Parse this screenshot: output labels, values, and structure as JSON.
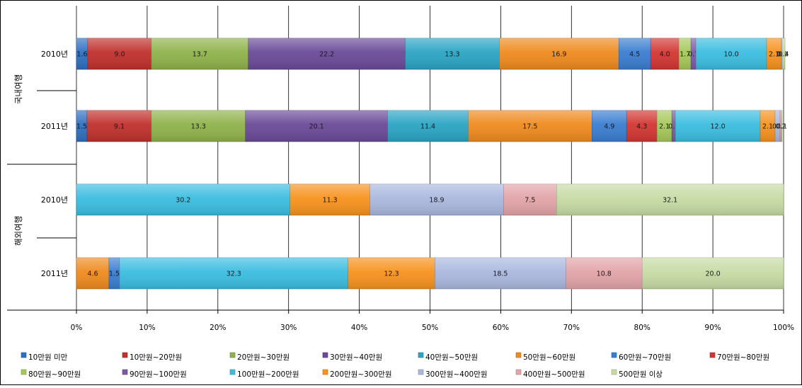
{
  "chart_data": {
    "type": "bar",
    "orientation": "horizontal",
    "stacked": "percent",
    "xlim": [
      0,
      100
    ],
    "x_ticks": [
      "0%",
      "10%",
      "20%",
      "30%",
      "40%",
      "50%",
      "60%",
      "70%",
      "80%",
      "90%",
      "100%"
    ],
    "grid": true,
    "legend_position": "bottom",
    "legend": [
      {
        "name": "10만원 미만",
        "color": "#2e6fc0"
      },
      {
        "name": "10만원~20만원",
        "color": "#c0302c"
      },
      {
        "name": "20만원~30만원",
        "color": "#8fb24a"
      },
      {
        "name": "30만원~40만원",
        "color": "#6a4a98"
      },
      {
        "name": "40만원~50만원",
        "color": "#2aa4c4"
      },
      {
        "name": "50만원~60만원",
        "color": "#ef8a1e"
      },
      {
        "name": "60만원~70만원",
        "color": "#3a7dd0"
      },
      {
        "name": "70만원~80만원",
        "color": "#d23632"
      },
      {
        "name": "80만원~90만원",
        "color": "#a6c85a"
      },
      {
        "name": "90만원~100만원",
        "color": "#7a5aa8"
      },
      {
        "name": "100만원~200만원",
        "color": "#3bbde0"
      },
      {
        "name": "200만원~300만원",
        "color": "#f7921e"
      },
      {
        "name": "300만원~400만원",
        "color": "#aab8de"
      },
      {
        "name": "400만원~500만원",
        "color": "#e2a4a8"
      },
      {
        "name": "500만원 이상",
        "color": "#c6dba4"
      }
    ],
    "groups": [
      {
        "name": "국내여행",
        "rows": [
          {
            "category": "2010년",
            "segments": [
              {
                "series": "10만원 미만",
                "value": 1.6
              },
              {
                "series": "10만원~20만원",
                "value": 9.0
              },
              {
                "series": "20만원~30만원",
                "value": 13.7
              },
              {
                "series": "30만원~40만원",
                "value": 22.2
              },
              {
                "series": "40만원~50만원",
                "value": 13.3
              },
              {
                "series": "50만원~60만원",
                "value": 16.9
              },
              {
                "series": "60만원~70만원",
                "value": 4.5
              },
              {
                "series": "70만원~80만원",
                "value": 4.0
              },
              {
                "series": "80만원~90만원",
                "value": 1.7
              },
              {
                "series": "90만원~100만원",
                "value": 0.7
              },
              {
                "series": "100만원~200만원",
                "value": 10.0
              },
              {
                "series": "200만원~300만원",
                "value": 2.1
              },
              {
                "series": "300만원~400만원",
                "value": 0.1
              },
              {
                "series": "400만원~500만원",
                "value": 0.0
              },
              {
                "series": "500만원 이상",
                "value": 0.4
              }
            ]
          },
          {
            "category": "2011년",
            "segments": [
              {
                "series": "10만원 미만",
                "value": 1.5
              },
              {
                "series": "10만원~20만원",
                "value": 9.1
              },
              {
                "series": "20만원~30만원",
                "value": 13.3
              },
              {
                "series": "30만원~40만원",
                "value": 20.1
              },
              {
                "series": "40만원~50만원",
                "value": 11.4
              },
              {
                "series": "50만원~60만원",
                "value": 17.5
              },
              {
                "series": "60만원~70만원",
                "value": 4.9
              },
              {
                "series": "70만원~80만원",
                "value": 4.3
              },
              {
                "series": "80만원~90만원",
                "value": 2.1
              },
              {
                "series": "90만원~100만원",
                "value": 0.5
              },
              {
                "series": "100만원~200만원",
                "value": 12.0
              },
              {
                "series": "200만원~300만원",
                "value": 2.1
              },
              {
                "series": "300만원~400만원",
                "value": 0.7
              },
              {
                "series": "400만원~500만원",
                "value": 0.2
              },
              {
                "series": "500만원 이상",
                "value": 0.1
              }
            ]
          }
        ]
      },
      {
        "name": "해외여행",
        "rows": [
          {
            "category": "2010년",
            "segments": [
              {
                "series": "100만원~200만원",
                "value": 30.2
              },
              {
                "series": "200만원~300만원",
                "value": 11.3
              },
              {
                "series": "300만원~400만원",
                "value": 18.9
              },
              {
                "series": "400만원~500만원",
                "value": 7.5
              },
              {
                "series": "500만원 이상",
                "value": 32.1
              }
            ]
          },
          {
            "category": "2011년",
            "segments": [
              {
                "series": "50만원~60만원",
                "value": 4.6
              },
              {
                "series": "60만원~70만원",
                "value": 1.5
              },
              {
                "series": "100만원~200만원",
                "value": 32.3
              },
              {
                "series": "200만원~300만원",
                "value": 12.3
              },
              {
                "series": "300만원~400만원",
                "value": 18.5
              },
              {
                "series": "400만원~500만원",
                "value": 10.8
              },
              {
                "series": "500만원 이상",
                "value": 20.0
              }
            ]
          }
        ]
      }
    ]
  }
}
